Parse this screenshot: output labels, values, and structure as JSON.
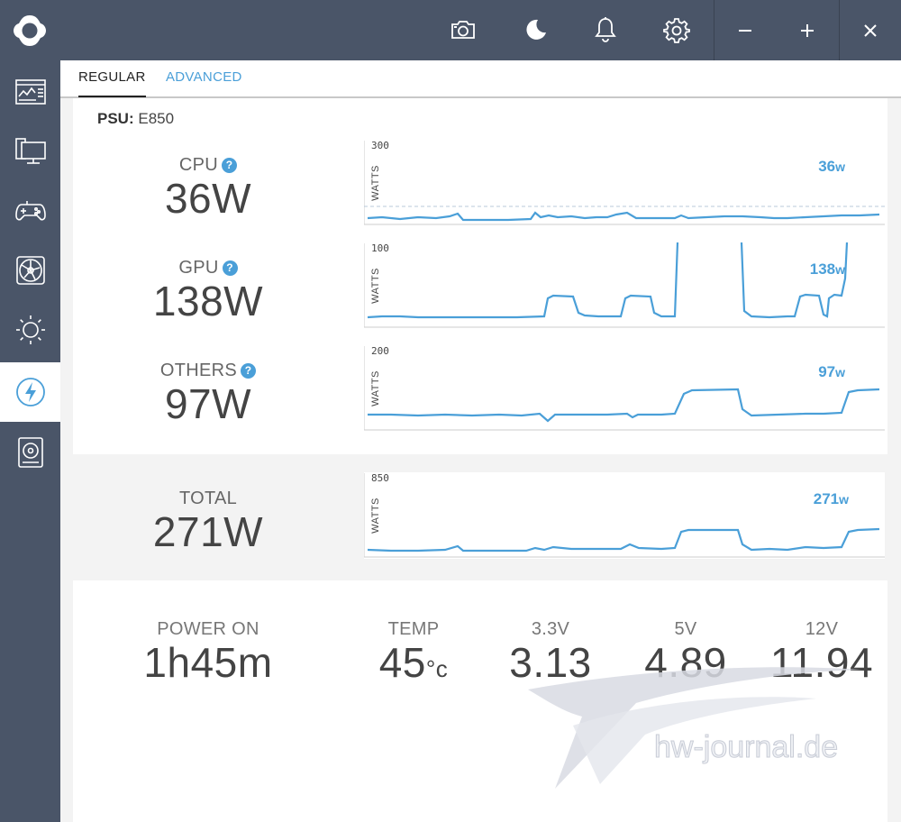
{
  "window": {
    "logo": "app-logo",
    "toolbar_icons": [
      "camera-icon",
      "moon-icon",
      "bell-icon",
      "gear-icon"
    ],
    "controls": {
      "minimize": "−",
      "maximize": "+",
      "close": "✕"
    }
  },
  "sidebar": {
    "items": [
      {
        "icon": "dashboard-icon",
        "active": false
      },
      {
        "icon": "monitor-icon",
        "active": false
      },
      {
        "icon": "gamepad-icon",
        "active": false
      },
      {
        "icon": "fan-icon",
        "active": false
      },
      {
        "icon": "lighting-icon",
        "active": false
      },
      {
        "icon": "power-icon",
        "active": true
      },
      {
        "icon": "storage-icon",
        "active": false
      }
    ]
  },
  "tabs": {
    "regular": "REGULAR",
    "advanced": "ADVANCED",
    "active": "REGULAR"
  },
  "psu": {
    "label": "PSU:",
    "model": "E850"
  },
  "rails": [
    {
      "label": "CPU",
      "value": "36W",
      "has_help": true,
      "help": "?",
      "graph_max": "300",
      "unit": "WATTS",
      "current": "36",
      "current_unit": "w"
    },
    {
      "label": "GPU",
      "value": "138W",
      "has_help": true,
      "help": "?",
      "graph_max": "100",
      "unit": "WATTS",
      "current": "138",
      "current_unit": "w"
    },
    {
      "label": "OTHERS",
      "value": "97W",
      "has_help": true,
      "help": "?",
      "graph_max": "200",
      "unit": "WATTS",
      "current": "97",
      "current_unit": "w"
    }
  ],
  "total": {
    "label": "TOTAL",
    "value": "271W",
    "graph_max": "850",
    "unit": "WATTS",
    "current": "271",
    "current_unit": "w"
  },
  "stats": {
    "power_on": {
      "label": "POWER ON",
      "value": "1h45m"
    },
    "temp": {
      "label": "TEMP",
      "value": "45",
      "unit": "°c"
    },
    "v33": {
      "label": "3.3V",
      "value": "3.13"
    },
    "v5": {
      "label": "5V",
      "value": "4.89"
    },
    "v12": {
      "label": "12V",
      "value": "11.94"
    }
  },
  "watermark": "hw-journal.de",
  "colors": {
    "accent": "#4a9fd8",
    "sidebar": "#4a5568",
    "active_bg": "#ffffff"
  }
}
